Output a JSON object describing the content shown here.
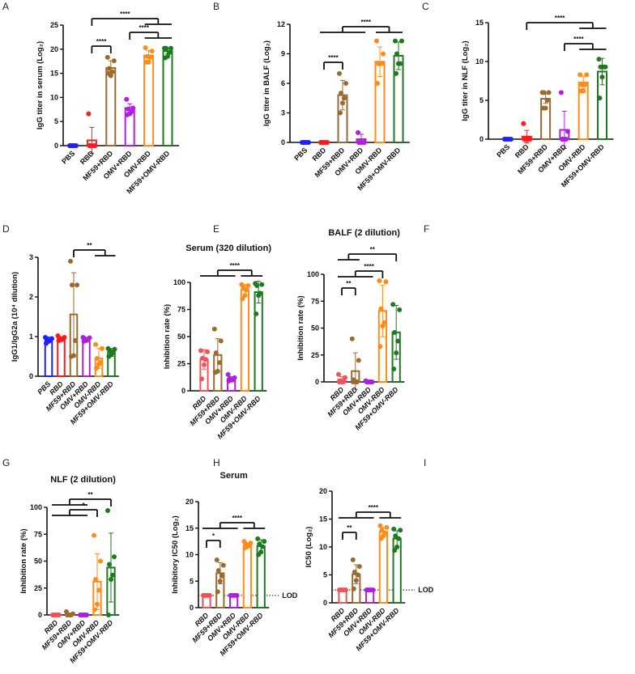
{
  "colors": {
    "PBS": "#1f1fff",
    "RBD": "#ff1a1a",
    "RBD_light": "#f0525a",
    "MF59+RBD": "#9b6a2f",
    "OMV+RBD": "#b01ee0",
    "OMV-RBD": "#ff8c1a",
    "MF59+OMV-RBD": "#1e7a1e"
  },
  "chart_data": [
    {
      "panel": "A",
      "type": "bar",
      "title": "",
      "ylabel": "IgG titer in serum (Log₂)",
      "ylim": [
        0,
        25
      ],
      "yticks": [
        "0",
        "5",
        "10",
        "15",
        "20",
        "25"
      ],
      "categories": [
        "PBS",
        "RBD",
        "MF59+RBD",
        "OMV+RBD",
        "OMV-RBD",
        "MF59+OMV-RBD"
      ],
      "means": [
        0,
        1.1,
        16.1,
        7.8,
        18.7,
        19.6
      ],
      "sd": [
        0,
        2.7,
        1.5,
        0.9,
        1.0,
        0.5
      ],
      "points": [
        [
          0,
          0,
          0,
          0,
          0,
          0
        ],
        [
          6.6,
          0,
          0,
          0,
          0,
          0
        ],
        [
          18.3,
          17.6,
          16.0,
          15.3,
          14.5,
          15.0
        ],
        [
          9.6,
          7.8,
          7.6,
          7.0,
          6.6,
          6.4
        ],
        [
          20.3,
          19.6,
          18.5,
          18.3,
          17.3,
          17.3
        ],
        [
          20.2,
          20.2,
          20.2,
          19.3,
          18.5,
          18.2
        ]
      ],
      "significance": [
        {
          "label": "****",
          "left": [
            1,
            1
          ],
          "right": [
            2,
            2
          ]
        },
        {
          "label": "****",
          "left": [
            3,
            3
          ],
          "right": [
            4,
            5
          ]
        },
        {
          "label": "****",
          "left": [
            1,
            1
          ],
          "right": [
            4,
            5
          ]
        }
      ]
    },
    {
      "panel": "B",
      "type": "bar",
      "title": "",
      "ylabel": "IgG titer in BALF (Log₂)",
      "ylim": [
        0,
        12
      ],
      "yticks": [
        "0",
        "3",
        "6",
        "9",
        "12"
      ],
      "categories": [
        "PBS",
        "RBD",
        "MF59+RBD",
        "OMV+RBD",
        "OMV-RBD",
        "MF59+OMV-RBD"
      ],
      "means": [
        0,
        0,
        4.8,
        0.33,
        8.2,
        8.8
      ],
      "sd": [
        0,
        0,
        1.5,
        0.5,
        1.5,
        1.4
      ],
      "points": [
        [
          0,
          0,
          0,
          0,
          0,
          0
        ],
        [
          0,
          0,
          0,
          0,
          0,
          0
        ],
        [
          7,
          6,
          5,
          4.5,
          4,
          3
        ],
        [
          1,
          0,
          0,
          0,
          0,
          0
        ],
        [
          10.3,
          9,
          8,
          8,
          8,
          6
        ],
        [
          10.3,
          10.3,
          9,
          8,
          8,
          7
        ]
      ],
      "significance": [
        {
          "label": "****",
          "left": [
            1,
            1
          ],
          "right": [
            2,
            2
          ]
        },
        {
          "label": "****",
          "left": [
            1,
            3
          ],
          "right": [
            4,
            5
          ]
        }
      ]
    },
    {
      "panel": "C",
      "type": "bar",
      "title": "",
      "ylabel": "IgG titer in NLF (Log₂)",
      "ylim": [
        0,
        15
      ],
      "yticks": [
        "0",
        "5",
        "10",
        "15"
      ],
      "categories": [
        "PBS",
        "RBD",
        "MF59+RBD",
        "OMV+RBD",
        "OMV-RBD",
        "MF59+OMV-RBD"
      ],
      "means": [
        0,
        0.33,
        5.2,
        1.2,
        7.3,
        8.7
      ],
      "sd": [
        0,
        0.8,
        0.6,
        2.4,
        0.8,
        1.7
      ],
      "points": [
        [
          0,
          0,
          0,
          0,
          0,
          0
        ],
        [
          2,
          0,
          0,
          0,
          0,
          0
        ],
        [
          6,
          6,
          6,
          5,
          4,
          4
        ],
        [
          6,
          1,
          0,
          0,
          0,
          0
        ],
        [
          8.3,
          8.3,
          7,
          7,
          6.2,
          6.2
        ],
        [
          10.3,
          9.3,
          9.3,
          9.3,
          8,
          5.3
        ]
      ],
      "significance": [
        {
          "label": "****",
          "left": [
            3,
            3
          ],
          "right": [
            4,
            5
          ]
        },
        {
          "label": "****",
          "left": [
            1,
            1
          ],
          "right": [
            4,
            5
          ]
        }
      ]
    },
    {
      "panel": "D",
      "type": "bar",
      "title": "",
      "ylabel": "IgG1/IgG2a (10⁴ dilution)",
      "ylim": [
        0,
        3
      ],
      "yticks": [
        "0",
        "1",
        "2",
        "3"
      ],
      "categories": [
        "PBS",
        "RBD",
        "MF59+RBD",
        "OMV+RBD",
        "OMV-RBD",
        "MF59+OMV-RBD"
      ],
      "means": [
        0.93,
        0.95,
        1.56,
        0.93,
        0.45,
        0.6
      ],
      "sd": [
        0.06,
        0.05,
        1.05,
        0.05,
        0.25,
        0.1
      ],
      "points": [
        [
          0.98,
          0.95,
          0.93,
          0.9,
          0.88,
          0.83
        ],
        [
          1.02,
          0.98,
          0.95,
          0.93,
          0.92,
          0.9
        ],
        [
          2.9,
          2.3,
          2.3,
          0.9,
          0.52,
          0.5
        ],
        [
          0.98,
          0.97,
          0.95,
          0.92,
          0.9,
          0.88
        ],
        [
          0.8,
          0.7,
          0.45,
          0.35,
          0.3,
          0.2
        ],
        [
          0.7,
          0.68,
          0.65,
          0.6,
          0.55,
          0.5
        ]
      ],
      "significance": [
        {
          "label": "**",
          "left": [
            2,
            2
          ],
          "right": [
            4,
            5
          ]
        }
      ]
    },
    {
      "panel": "E",
      "type": "bar",
      "title": "Serum (320 dilution)",
      "ylabel": "Inhibition rate (%)",
      "ylim": [
        0,
        100
      ],
      "yticks": [
        "0",
        "25",
        "50",
        "75",
        "100"
      ],
      "categories": [
        "RBD",
        "MF59+RBD",
        "OMV+RBD",
        "OMV-RBD",
        "MF59+OMV-RBD"
      ],
      "means": [
        29,
        33,
        11,
        93,
        91
      ],
      "sd": [
        9,
        15,
        2,
        5,
        10
      ],
      "points": [
        [
          37,
          36,
          30,
          29,
          24,
          11
        ],
        [
          57,
          46,
          35,
          26,
          18,
          17
        ],
        [
          15,
          12,
          11,
          10,
          10,
          9
        ],
        [
          98,
          97,
          95,
          93,
          88,
          85
        ],
        [
          99,
          98,
          97,
          90,
          88,
          71
        ]
      ],
      "significance": [
        {
          "label": "****",
          "left": [
            0,
            2
          ],
          "right": [
            3,
            4
          ]
        }
      ]
    },
    {
      "panel": "F",
      "type": "bar",
      "title": "BALF (2 dilution)",
      "ylabel": "Inhibition rate (%)",
      "ylim": [
        0,
        100
      ],
      "yticks": [
        "0",
        "25",
        "50",
        "75",
        "100"
      ],
      "categories": [
        "RBD",
        "MF59+RBD",
        "OMV+RBD",
        "OMV-RBD",
        "MF59+OMV-RBD"
      ],
      "means": [
        2,
        10,
        0.5,
        66,
        46
      ],
      "sd": [
        3,
        17,
        0.5,
        24,
        25
      ],
      "points": [
        [
          7,
          4,
          1,
          0,
          0,
          0
        ],
        [
          40,
          20,
          2,
          0,
          0,
          0
        ],
        [
          1,
          0,
          0,
          0,
          0,
          0
        ],
        [
          94,
          93,
          68,
          55,
          52,
          33
        ],
        [
          72,
          67,
          46,
          38,
          27,
          12
        ]
      ],
      "significance": [
        {
          "label": "**",
          "left": [
            0,
            0
          ],
          "right": [
            1,
            1
          ]
        },
        {
          "label": "****",
          "left": [
            0,
            2
          ],
          "right": [
            3,
            3
          ]
        },
        {
          "label": "**",
          "left": [
            0,
            1
          ],
          "right": [
            4,
            4
          ]
        }
      ]
    },
    {
      "panel": "G",
      "type": "bar",
      "title": "NLF (2 dilution)",
      "ylabel": "Inhibition rate (%)",
      "ylim": [
        0,
        100
      ],
      "yticks": [
        "0",
        "25",
        "50",
        "75",
        "100"
      ],
      "categories": [
        "RBD",
        "MF59+RBD",
        "OMV+RBD",
        "OMV-RBD",
        "MF59+OMV-RBD"
      ],
      "means": [
        0,
        0.5,
        0,
        31,
        44
      ],
      "sd": [
        0,
        1,
        0,
        26,
        32
      ],
      "points": [
        [
          0,
          0,
          0,
          0,
          0,
          0
        ],
        [
          3,
          1,
          0,
          0,
          0,
          0
        ],
        [
          0,
          0,
          0,
          0,
          0,
          0
        ],
        [
          74,
          50,
          33,
          23,
          10,
          5
        ],
        [
          97,
          54,
          47,
          37,
          33,
          0
        ]
      ],
      "significance": [
        {
          "label": "*",
          "left": [
            0,
            2
          ],
          "right": [
            3,
            3
          ]
        },
        {
          "label": "**",
          "left": [
            0,
            2
          ],
          "right": [
            4,
            4
          ]
        }
      ]
    },
    {
      "panel": "H",
      "type": "bar",
      "title": "Serum",
      "ylabel": "Inhibitory IC50 (Log₂)",
      "ylim": [
        0,
        20
      ],
      "yticks": [
        "0",
        "5",
        "10",
        "15",
        "20"
      ],
      "categories": [
        "RBD",
        "MF59+RBD",
        "OMV+RBD",
        "OMV-RBD",
        "MF59+OMV-RBD"
      ],
      "means": [
        2.3,
        6.5,
        2.3,
        11.8,
        11.6
      ],
      "sd": [
        0,
        2,
        0,
        0.4,
        1.2
      ],
      "points": [
        [
          2.3,
          2.3,
          2.3,
          2.3,
          2.3,
          2.3
        ],
        [
          9,
          8,
          7,
          6,
          5,
          3
        ],
        [
          2.3,
          2.3,
          2.3,
          2.3,
          2.3,
          2.3
        ],
        [
          12.5,
          12.2,
          12,
          11.7,
          11.5,
          11.3
        ],
        [
          13,
          12.5,
          12,
          11.5,
          10.5,
          10
        ]
      ],
      "lod": {
        "label": "LOD",
        "value": 2.3
      },
      "significance": [
        {
          "label": "*",
          "left": [
            0,
            0
          ],
          "right": [
            1,
            1
          ]
        },
        {
          "label": "****",
          "left": [
            0,
            2
          ],
          "right": [
            3,
            4
          ]
        }
      ]
    },
    {
      "panel": "I",
      "type": "bar",
      "title": "",
      "ylabel": "IC50 (Log₂)",
      "ylim": [
        0,
        20
      ],
      "yticks": [
        "0",
        "5",
        "10",
        "15",
        "20"
      ],
      "categories": [
        "RBD",
        "MF59+RBD",
        "OMV+RBD",
        "OMV-RBD",
        "MF59+OMV-RBD"
      ],
      "means": [
        2.3,
        5.1,
        2.3,
        12.7,
        11.5
      ],
      "sd": [
        0,
        1.7,
        0,
        0.8,
        1.4
      ],
      "points": [
        [
          2.3,
          2.3,
          2.3,
          2.3,
          2.3,
          2.3
        ],
        [
          7.7,
          6.5,
          5.5,
          5,
          4,
          2.5
        ],
        [
          2.3,
          2.3,
          2.3,
          2.3,
          2.3,
          2.3
        ],
        [
          13.8,
          13.5,
          13,
          12.5,
          12,
          11.5
        ],
        [
          13.2,
          13,
          12,
          11.5,
          10,
          9.4
        ]
      ],
      "lod": {
        "label": "LOD",
        "value": 2.3
      },
      "significance": [
        {
          "label": "**",
          "left": [
            0,
            0
          ],
          "right": [
            1,
            1
          ]
        },
        {
          "label": "****",
          "left": [
            0,
            2
          ],
          "right": [
            3,
            4
          ]
        }
      ]
    }
  ]
}
